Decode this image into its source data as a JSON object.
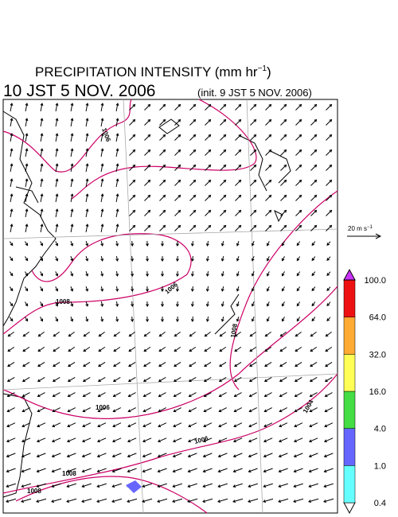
{
  "header": {
    "title": "PRECIPITATION INTENSITY (mm hr",
    "title_unit_power": "−1",
    "title_close": ")",
    "valid_time": "10 JST 5 NOV. 2006",
    "init_time": "(init. 9 JST 5 NOV. 2006)"
  },
  "wind_scale": {
    "label": "20 m s",
    "power": "−1"
  },
  "contour_labels": [
    "1006",
    "1008",
    "1006",
    "1008",
    "1006",
    "1008",
    "1006",
    "1004",
    "1008"
  ],
  "colorbar": {
    "labels": [
      "0.4",
      "1.0",
      "4.0",
      "16.0",
      "32.0",
      "64.0",
      "100.0"
    ],
    "colors": [
      "#66ffff",
      "#6666ff",
      "#44dd44",
      "#ffff55",
      "#ffaa33",
      "#ee1111"
    ],
    "above_color": "#cc33ff"
  }
}
